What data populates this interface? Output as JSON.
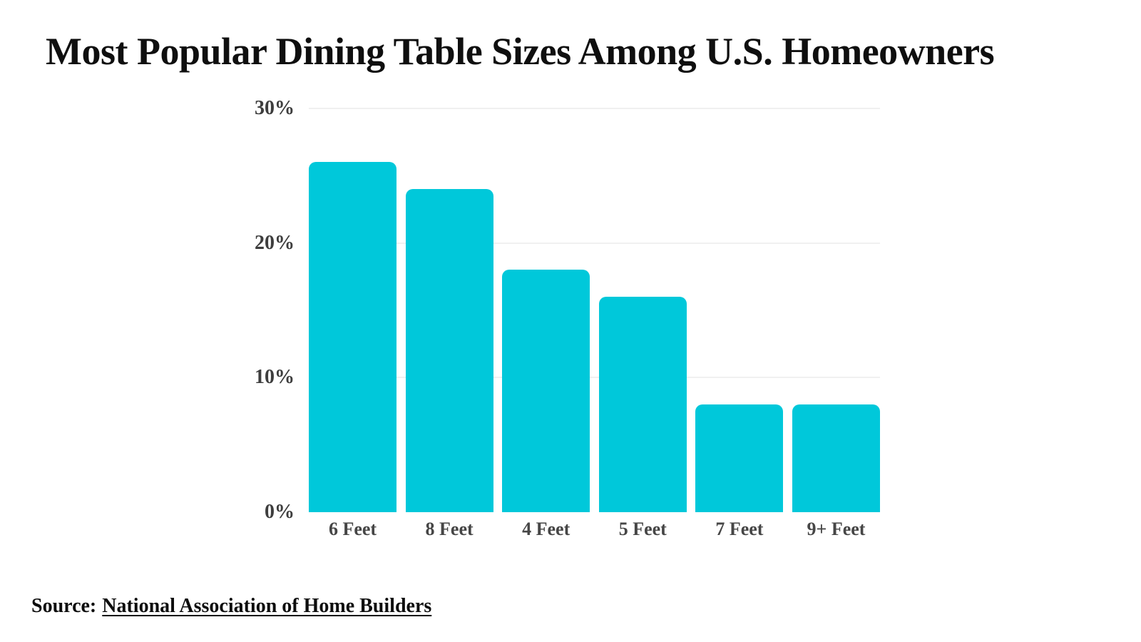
{
  "page": {
    "title": "Most Popular Dining Table Sizes Among U.S. Homeowners",
    "source_prefix": "Source:",
    "source_link": "National Association of Home Builders"
  },
  "colors": {
    "background": "#ffffff",
    "bar": "#00c8da",
    "gridline": "#f0f0f0",
    "title_text": "#0f0f0f",
    "y_tick_text": "#3d3d3d",
    "x_tick_text": "#464646",
    "source_text": "#0d0d0d"
  },
  "chart_data": {
    "type": "bar",
    "title": "Most Popular Dining Table Sizes Among U.S. Homeowners",
    "categories": [
      "6 Feet",
      "8 Feet",
      "4 Feet",
      "5 Feet",
      "7 Feet",
      "9+ Feet"
    ],
    "values": [
      26,
      24,
      18,
      16,
      8,
      8
    ],
    "unit": "%",
    "xlabel": "",
    "ylabel": "",
    "ylim": [
      0,
      30
    ],
    "yticks": [
      {
        "value": 30,
        "label": "30%"
      },
      {
        "value": 20,
        "label": "20%"
      },
      {
        "value": 10,
        "label": "10%"
      },
      {
        "value": 0,
        "label": "0%"
      }
    ],
    "grid": "horizontal-light",
    "legend": "none",
    "bar_color": "#00c8da"
  }
}
